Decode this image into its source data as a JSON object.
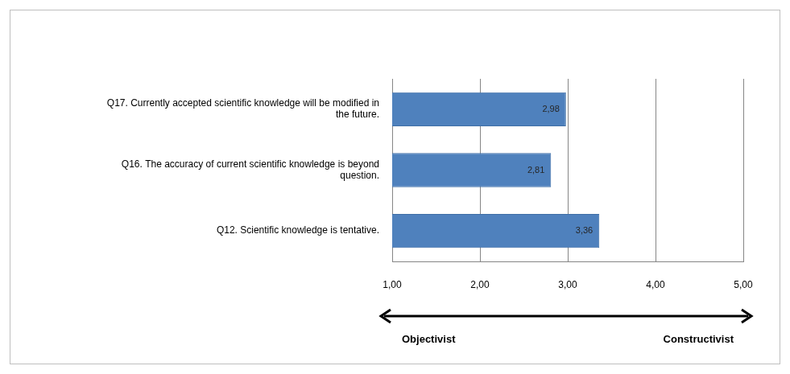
{
  "chart_data": {
    "type": "bar",
    "orientation": "horizontal",
    "categories": [
      "Q17. Currently accepted scientific knowledge will be modified in the future.",
      "Q16. The accuracy of current scientific knowledge is beyond question.",
      "Q12. Scientific knowledge is tentative."
    ],
    "values": [
      2.98,
      2.81,
      3.36
    ],
    "value_labels": [
      "2,98",
      "2,81",
      "3,36"
    ],
    "data_labels": true,
    "color": "#4f81bd",
    "xlim": [
      1,
      5
    ],
    "xticks": [
      {
        "value": 1,
        "label": "1,00"
      },
      {
        "value": 2,
        "label": "2,00"
      },
      {
        "value": 3,
        "label": "3,00"
      },
      {
        "value": 4,
        "label": "4,00"
      },
      {
        "value": 5,
        "label": "5,00"
      }
    ],
    "grid": true,
    "annotations": [
      {
        "text": "Objectivist"
      },
      {
        "text": "Constructivist"
      }
    ]
  }
}
